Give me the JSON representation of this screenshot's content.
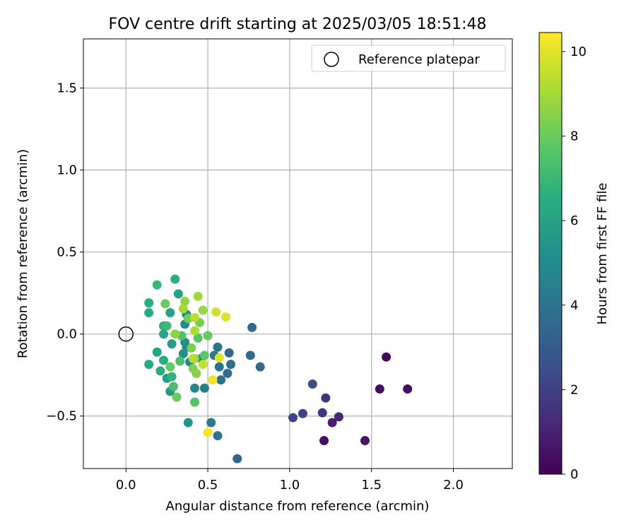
{
  "chart_data": {
    "type": "scatter",
    "title": "FOV centre drift starting at 2025/03/05 18:51:48",
    "xlabel": "Angular distance from reference (arcmin)",
    "ylabel": "Rotation from reference (arcmin)",
    "xlim": [
      -0.26,
      2.36
    ],
    "ylim": [
      -0.82,
      1.8
    ],
    "xticks": [
      0.0,
      0.5,
      1.0,
      1.5,
      2.0
    ],
    "xtick_labels": [
      "0.0",
      "0.5",
      "1.0",
      "1.5",
      "2.0"
    ],
    "yticks": [
      -0.5,
      0.0,
      0.5,
      1.0,
      1.5
    ],
    "ytick_labels": [
      "−0.5",
      "0.0",
      "0.5",
      "1.0",
      "1.5"
    ],
    "grid": true,
    "legend": {
      "position": "top-right",
      "entries": [
        {
          "label": "Reference platepar",
          "marker": "open-circle"
        }
      ]
    },
    "reference": {
      "x": 0.0,
      "y": 0.0
    },
    "colorbar": {
      "label": "Hours from first FF file",
      "colormap": "viridis",
      "min": 0,
      "max": 10.45,
      "ticks": [
        0,
        2,
        4,
        6,
        8,
        10
      ],
      "tick_labels": [
        "0",
        "2",
        "4",
        "6",
        "8",
        "10"
      ]
    },
    "points": [
      {
        "x": 1.59,
        "y": -0.14,
        "h": 0.2
      },
      {
        "x": 1.55,
        "y": -0.335,
        "h": 0.3
      },
      {
        "x": 1.72,
        "y": -0.335,
        "h": 0.4
      },
      {
        "x": 1.21,
        "y": -0.65,
        "h": 0.5
      },
      {
        "x": 1.46,
        "y": -0.65,
        "h": 0.6
      },
      {
        "x": 1.26,
        "y": -0.54,
        "h": 0.9
      },
      {
        "x": 1.3,
        "y": -0.505,
        "h": 1.2
      },
      {
        "x": 1.22,
        "y": -0.39,
        "h": 1.5
      },
      {
        "x": 1.2,
        "y": -0.48,
        "h": 1.6
      },
      {
        "x": 1.08,
        "y": -0.485,
        "h": 2.1
      },
      {
        "x": 1.02,
        "y": -0.51,
        "h": 2.2
      },
      {
        "x": 1.14,
        "y": -0.305,
        "h": 2.4
      },
      {
        "x": 0.68,
        "y": -0.76,
        "h": 3.4
      },
      {
        "x": 0.77,
        "y": 0.04,
        "h": 3.5
      },
      {
        "x": 0.82,
        "y": -0.2,
        "h": 3.5
      },
      {
        "x": 0.76,
        "y": -0.13,
        "h": 3.6
      },
      {
        "x": 0.63,
        "y": -0.115,
        "h": 3.6
      },
      {
        "x": 0.64,
        "y": -0.185,
        "h": 3.7
      },
      {
        "x": 0.62,
        "y": -0.24,
        "h": 3.8
      },
      {
        "x": 0.58,
        "y": -0.28,
        "h": 3.9
      },
      {
        "x": 0.57,
        "y": -0.2,
        "h": 4.0
      },
      {
        "x": 0.56,
        "y": -0.62,
        "h": 4.0
      },
      {
        "x": 0.56,
        "y": -0.08,
        "h": 4.1
      },
      {
        "x": 0.54,
        "y": -0.13,
        "h": 4.2
      },
      {
        "x": 0.52,
        "y": -0.54,
        "h": 4.2
      },
      {
        "x": 0.48,
        "y": -0.33,
        "h": 4.4
      },
      {
        "x": 0.46,
        "y": -0.15,
        "h": 4.6
      },
      {
        "x": 0.42,
        "y": -0.33,
        "h": 4.7
      },
      {
        "x": 0.39,
        "y": -0.17,
        "h": 4.8
      },
      {
        "x": 0.37,
        "y": -0.08,
        "h": 4.9
      },
      {
        "x": 0.36,
        "y": -0.05,
        "h": 5.0
      },
      {
        "x": 0.36,
        "y": 0.06,
        "h": 5.1
      },
      {
        "x": 0.35,
        "y": -0.12,
        "h": 5.2
      },
      {
        "x": 0.37,
        "y": 0.12,
        "h": 5.3
      },
      {
        "x": 0.38,
        "y": -0.54,
        "h": 5.5
      },
      {
        "x": 0.27,
        "y": -0.35,
        "h": 5.6
      },
      {
        "x": 0.28,
        "y": -0.06,
        "h": 5.7
      },
      {
        "x": 0.25,
        "y": -0.27,
        "h": 5.8
      },
      {
        "x": 0.32,
        "y": 0.245,
        "h": 5.9
      },
      {
        "x": 0.27,
        "y": 0.13,
        "h": 6.0
      },
      {
        "x": 0.23,
        "y": 0.0,
        "h": 6.1
      },
      {
        "x": 0.19,
        "y": -0.11,
        "h": 6.2
      },
      {
        "x": 0.14,
        "y": -0.185,
        "h": 6.3
      },
      {
        "x": 0.14,
        "y": 0.19,
        "h": 6.4
      },
      {
        "x": 0.14,
        "y": 0.13,
        "h": 6.5
      },
      {
        "x": 0.23,
        "y": -0.16,
        "h": 6.5
      },
      {
        "x": 0.21,
        "y": -0.225,
        "h": 6.6
      },
      {
        "x": 0.3,
        "y": 0.335,
        "h": 6.6
      },
      {
        "x": 0.23,
        "y": 0.05,
        "h": 6.7
      },
      {
        "x": 0.28,
        "y": -0.26,
        "h": 6.8
      },
      {
        "x": 0.19,
        "y": 0.3,
        "h": 6.9
      },
      {
        "x": 0.25,
        "y": 0.05,
        "h": 7.1
      },
      {
        "x": 0.29,
        "y": -0.32,
        "h": 7.3
      },
      {
        "x": 0.33,
        "y": -0.165,
        "h": 7.4
      },
      {
        "x": 0.34,
        "y": -0.01,
        "h": 7.5
      },
      {
        "x": 0.42,
        "y": -0.415,
        "h": 7.6
      },
      {
        "x": 0.44,
        "y": -0.025,
        "h": 7.7
      },
      {
        "x": 0.48,
        "y": -0.13,
        "h": 7.8
      },
      {
        "x": 0.5,
        "y": -0.01,
        "h": 7.9
      },
      {
        "x": 0.27,
        "y": -0.2,
        "h": 7.9
      },
      {
        "x": 0.31,
        "y": -0.385,
        "h": 8.0
      },
      {
        "x": 0.24,
        "y": 0.185,
        "h": 8.0
      },
      {
        "x": 0.38,
        "y": 0.095,
        "h": 8.1
      },
      {
        "x": 0.45,
        "y": 0.07,
        "h": 8.2
      },
      {
        "x": 0.4,
        "y": -0.085,
        "h": 8.3
      },
      {
        "x": 0.41,
        "y": -0.21,
        "h": 8.4
      },
      {
        "x": 0.43,
        "y": -0.24,
        "h": 8.5
      },
      {
        "x": 0.42,
        "y": -0.15,
        "h": 8.6
      },
      {
        "x": 0.3,
        "y": 0.0,
        "h": 8.6
      },
      {
        "x": 0.36,
        "y": 0.2,
        "h": 8.7
      },
      {
        "x": 0.47,
        "y": 0.145,
        "h": 8.8
      },
      {
        "x": 0.44,
        "y": 0.23,
        "h": 8.9
      },
      {
        "x": 0.35,
        "y": 0.155,
        "h": 9.0
      },
      {
        "x": 0.42,
        "y": 0.02,
        "h": 9.1
      },
      {
        "x": 0.41,
        "y": -0.15,
        "h": 9.3
      },
      {
        "x": 0.42,
        "y": 0.1,
        "h": 9.4
      },
      {
        "x": 0.47,
        "y": -0.185,
        "h": 9.5
      },
      {
        "x": 0.55,
        "y": 0.135,
        "h": 9.7
      },
      {
        "x": 0.61,
        "y": 0.105,
        "h": 9.9
      },
      {
        "x": 0.57,
        "y": -0.145,
        "h": 10.0
      },
      {
        "x": 0.53,
        "y": -0.28,
        "h": 10.2
      },
      {
        "x": 0.5,
        "y": -0.6,
        "h": 10.3
      }
    ]
  }
}
